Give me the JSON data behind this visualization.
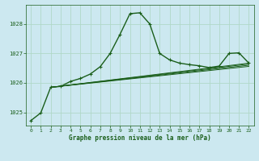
{
  "background_color": "#cce8f0",
  "grid_color": "#b0d8c8",
  "line_color": "#1a5e1a",
  "xlabel": "Graphe pression niveau de la mer (hPa)",
  "xlim": [
    -0.5,
    22.5
  ],
  "ylim": [
    1024.55,
    1028.65
  ],
  "yticks": [
    1025,
    1026,
    1027,
    1028
  ],
  "xticks": [
    0,
    1,
    2,
    3,
    4,
    5,
    6,
    7,
    8,
    9,
    10,
    11,
    12,
    13,
    14,
    15,
    16,
    17,
    18,
    19,
    20,
    21,
    22
  ],
  "main_x": [
    0,
    1,
    2,
    3,
    4,
    5,
    6,
    7,
    8,
    9,
    10,
    11,
    12,
    13,
    14,
    15,
    16,
    17,
    18,
    19,
    20,
    21,
    22
  ],
  "main_y": [
    1024.72,
    1024.98,
    1025.85,
    1025.88,
    1026.05,
    1026.15,
    1026.3,
    1026.55,
    1027.0,
    1027.65,
    1028.35,
    1028.38,
    1028.0,
    1027.0,
    1026.78,
    1026.67,
    1026.62,
    1026.58,
    1026.52,
    1026.57,
    1027.0,
    1027.02,
    1026.67
  ],
  "straight_lines": [
    {
      "x": [
        2,
        22
      ],
      "y": [
        1025.85,
        1026.67
      ]
    },
    {
      "x": [
        2,
        22
      ],
      "y": [
        1025.85,
        1026.64
      ]
    },
    {
      "x": [
        2,
        22
      ],
      "y": [
        1025.85,
        1026.6
      ]
    },
    {
      "x": [
        2,
        22
      ],
      "y": [
        1025.85,
        1026.56
      ]
    }
  ]
}
